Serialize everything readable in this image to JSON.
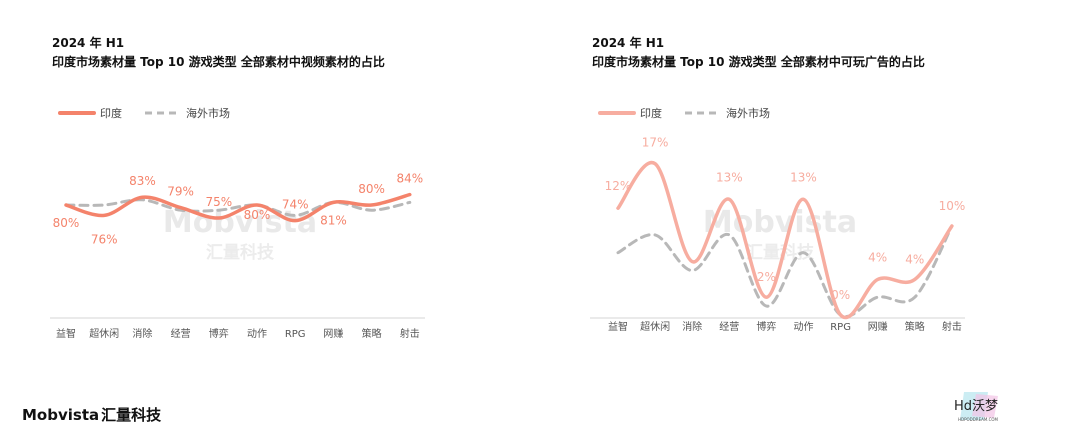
{
  "panels": [
    {
      "period": "2024 年 H1",
      "title": "印度市场素材量 Top 10 游戏类型  全部素材中视频素材的占比",
      "watermark": {
        "brand": "Mobvista",
        "cn": "汇量科技"
      },
      "chart_data": {
        "type": "line",
        "categories": [
          "益智",
          "超休闲",
          "消除",
          "经营",
          "博弈",
          "动作",
          "RPG",
          "网赚",
          "策略",
          "射击"
        ],
        "series": [
          {
            "name": "印度",
            "values": [
              80,
              76,
              83,
              79,
              75,
              80,
              74,
              81,
              80,
              84
            ],
            "labels": [
              "80%",
              "76%",
              "83%",
              "79%",
              "75%",
              "80%",
              "74%",
              "81%",
              "80%",
              "84%"
            ],
            "color": "#f4836b",
            "style": "solid"
          },
          {
            "name": "海外市场",
            "values": [
              80,
              80,
              82,
              78,
              78,
              80,
              76,
              81,
              78,
              81
            ],
            "color": "#b8b8b8",
            "style": "dashed"
          }
        ],
        "ylim": [
          0,
          100
        ],
        "legend": "top-left",
        "grid": false
      }
    },
    {
      "period": "2024 年 H1",
      "title": "印度市场素材量 Top 10 游戏类型  全部素材中可玩广告的占比",
      "watermark": {
        "brand": "Mobvista",
        "cn": "汇量科技"
      },
      "chart_data": {
        "type": "line",
        "categories": [
          "益智",
          "超休闲",
          "消除",
          "经营",
          "博弈",
          "动作",
          "RPG",
          "网赚",
          "策略",
          "射击"
        ],
        "series": [
          {
            "name": "印度",
            "values": [
              12,
              17,
              6,
              13,
              2,
              13,
              0,
              4,
              4,
              10
            ],
            "labels": [
              "12%",
              "17%",
              "",
              "13%",
              "2%",
              "13%",
              "0%",
              "4%",
              "4%",
              "10%"
            ],
            "color": "#f7ada0",
            "style": "solid"
          },
          {
            "name": "海外市场",
            "values": [
              7,
              9,
              5,
              9,
              1,
              7,
              0,
              2,
              2,
              10
            ],
            "color": "#b8b8b8",
            "style": "dashed"
          }
        ],
        "ylim": [
          0,
          18
        ],
        "legend": "top-left",
        "grid": false
      }
    }
  ],
  "footer": {
    "brand": "Mobvista",
    "cn": "汇量科技"
  },
  "badge": {
    "text": "Hd沃梦",
    "sub": "HDPODDREAM.COM"
  }
}
